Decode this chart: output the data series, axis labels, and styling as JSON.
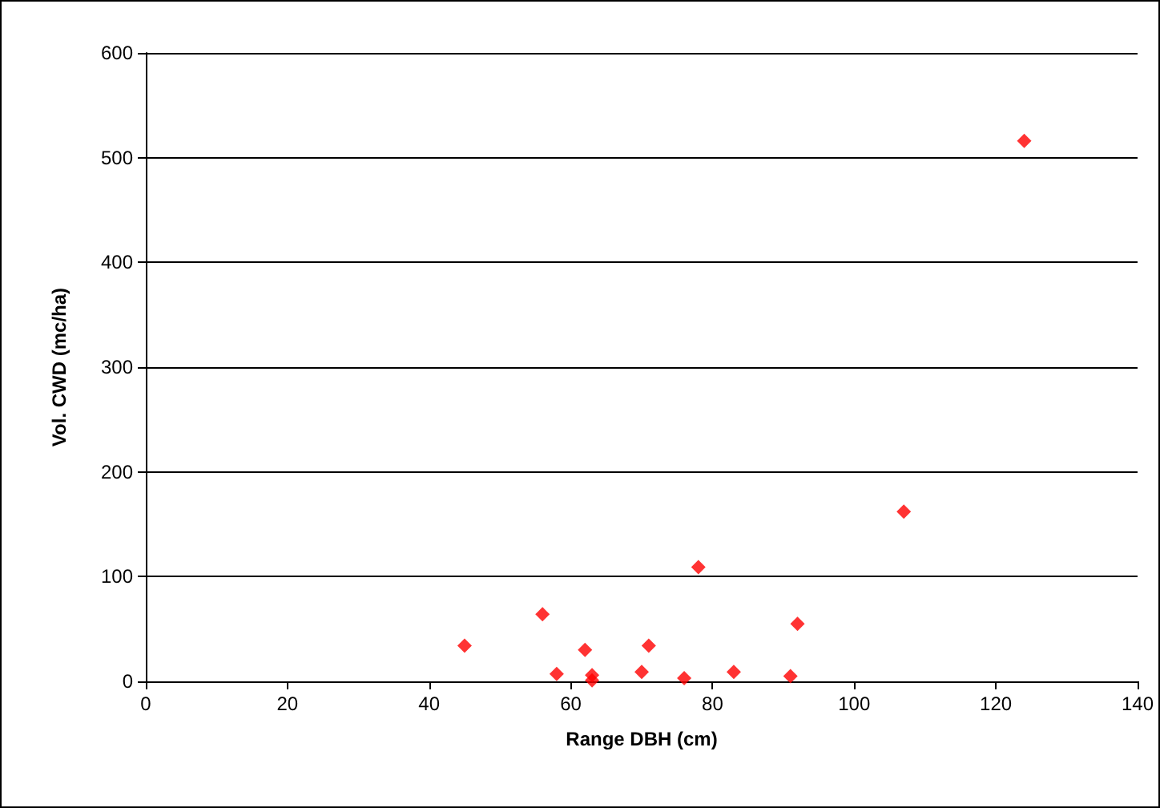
{
  "chart_data": {
    "type": "scatter",
    "xlabel": "Range DBH (cm)",
    "ylabel": "Vol. CWD (mc/ha)",
    "x": [
      45,
      56,
      58,
      62,
      63,
      63,
      70,
      71,
      78,
      76,
      83,
      91,
      92,
      107,
      124
    ],
    "series": [
      {
        "color": "#ff0000",
        "values": [
          34,
          64,
          7,
          30,
          6,
          1,
          9,
          34,
          109,
          3,
          9,
          5,
          55,
          162,
          516
        ]
      }
    ],
    "xlim": [
      0,
      140
    ],
    "xticks": [
      0,
      20,
      40,
      60,
      80,
      100,
      120,
      140
    ],
    "ylim": [
      0,
      600
    ],
    "yticks": [
      0,
      100,
      200,
      300,
      400,
      500,
      600
    ],
    "grid": "y",
    "marker": "diamond"
  }
}
